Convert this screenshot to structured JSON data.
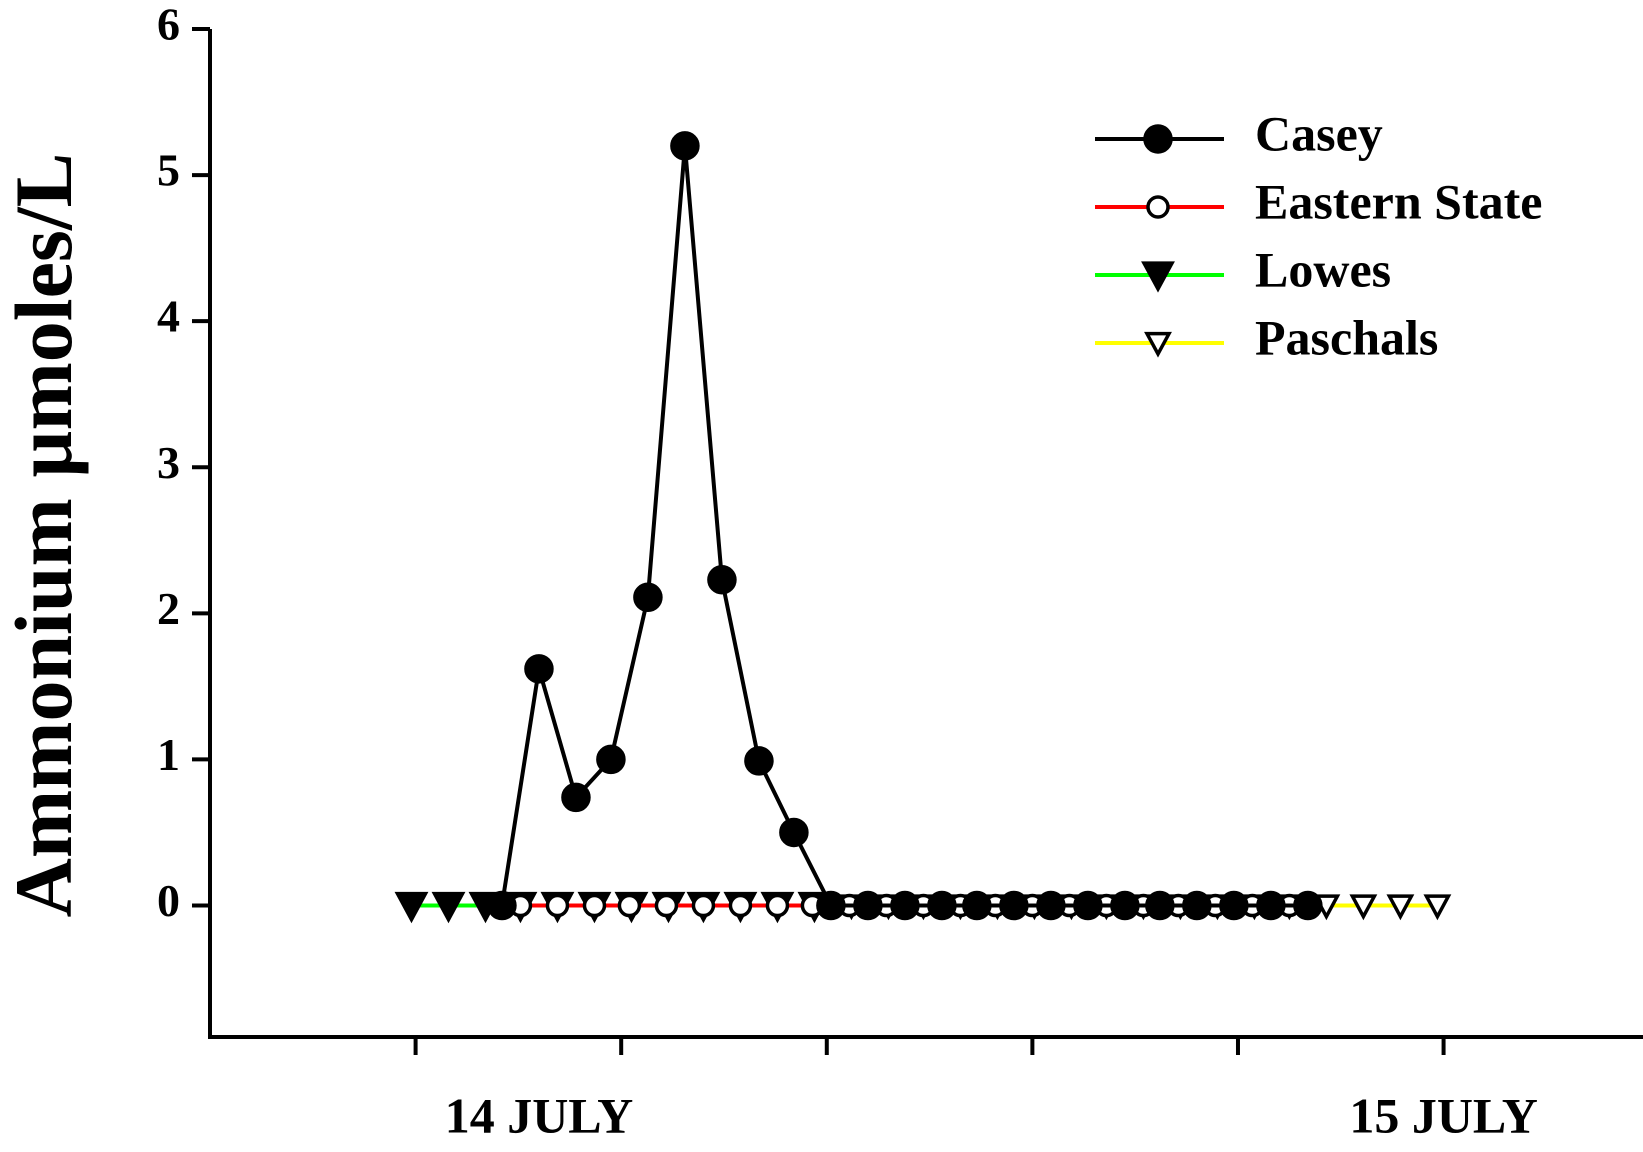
{
  "chart_data": {
    "type": "line",
    "y_label": "Ammonium µmoles/L",
    "ylim": [
      -0.9,
      6
    ],
    "yticks": [
      0,
      1,
      2,
      3,
      4,
      5,
      6
    ],
    "xlim": [
      0,
      6.97
    ],
    "xticks": [
      1,
      2,
      3,
      4,
      5,
      6
    ],
    "x_labels": [
      {
        "value": 1.6,
        "label": "14 JULY"
      },
      {
        "value": 6.0,
        "label": "15 JULY"
      }
    ],
    "legend": "upper right",
    "series": [
      {
        "name": "Casey",
        "color": "#000000",
        "marker": "filled-circle",
        "x": [
          1.42,
          1.6,
          1.78,
          1.95,
          2.13,
          2.31,
          2.49,
          2.67,
          2.84,
          3.02,
          3.2,
          3.38,
          3.56,
          3.73,
          3.91,
          4.09,
          4.27,
          4.45,
          4.62,
          4.8,
          4.98,
          5.16,
          5.34
        ],
        "values": [
          0,
          1.62,
          0.74,
          1.0,
          2.11,
          5.2,
          2.23,
          0.99,
          0.5,
          0,
          0,
          0,
          0,
          0,
          0,
          0,
          0,
          0,
          0,
          0,
          0,
          0,
          0
        ]
      },
      {
        "name": "Eastern State",
        "color": "#ff0000",
        "marker": "open-circle",
        "x": [
          1.51,
          1.69,
          1.87,
          2.04,
          2.22,
          2.4,
          2.58,
          2.76,
          2.93,
          3.11,
          3.29,
          3.47,
          3.65,
          3.82,
          4.0,
          4.18,
          4.36,
          4.54,
          4.71,
          4.89,
          5.07,
          5.25
        ],
        "values": [
          0,
          0,
          0,
          0,
          0,
          0,
          0,
          0,
          0,
          0,
          0,
          0,
          0,
          0,
          0,
          0,
          0,
          0,
          0,
          0,
          0,
          0
        ]
      },
      {
        "name": "Lowes",
        "color": "#00ff00",
        "marker": "filled-triangle",
        "x": [
          0.98,
          1.16,
          1.34,
          1.51,
          1.69,
          1.87,
          2.05,
          2.23,
          2.4,
          2.58,
          2.76,
          2.94
        ],
        "values": [
          0,
          0,
          0,
          0,
          0,
          0,
          0,
          0,
          0,
          0,
          0,
          0
        ]
      },
      {
        "name": "Paschals",
        "color": "#ffff00",
        "marker": "open-triangle",
        "x": [
          1.34,
          1.51,
          1.69,
          1.87,
          2.05,
          2.23,
          2.4,
          2.58,
          2.76,
          2.94,
          3.12,
          3.3,
          3.47,
          3.65,
          3.83,
          4.01,
          4.19,
          4.36,
          4.54,
          4.72,
          4.9,
          5.08,
          5.25,
          5.43,
          5.61,
          5.79,
          5.97
        ],
        "values": [
          0,
          0,
          0,
          0,
          0,
          0,
          0,
          0,
          0,
          0,
          0,
          0,
          0,
          0,
          0,
          0,
          0,
          0,
          0,
          0,
          0,
          0,
          0,
          0,
          0,
          0,
          0
        ]
      }
    ]
  }
}
